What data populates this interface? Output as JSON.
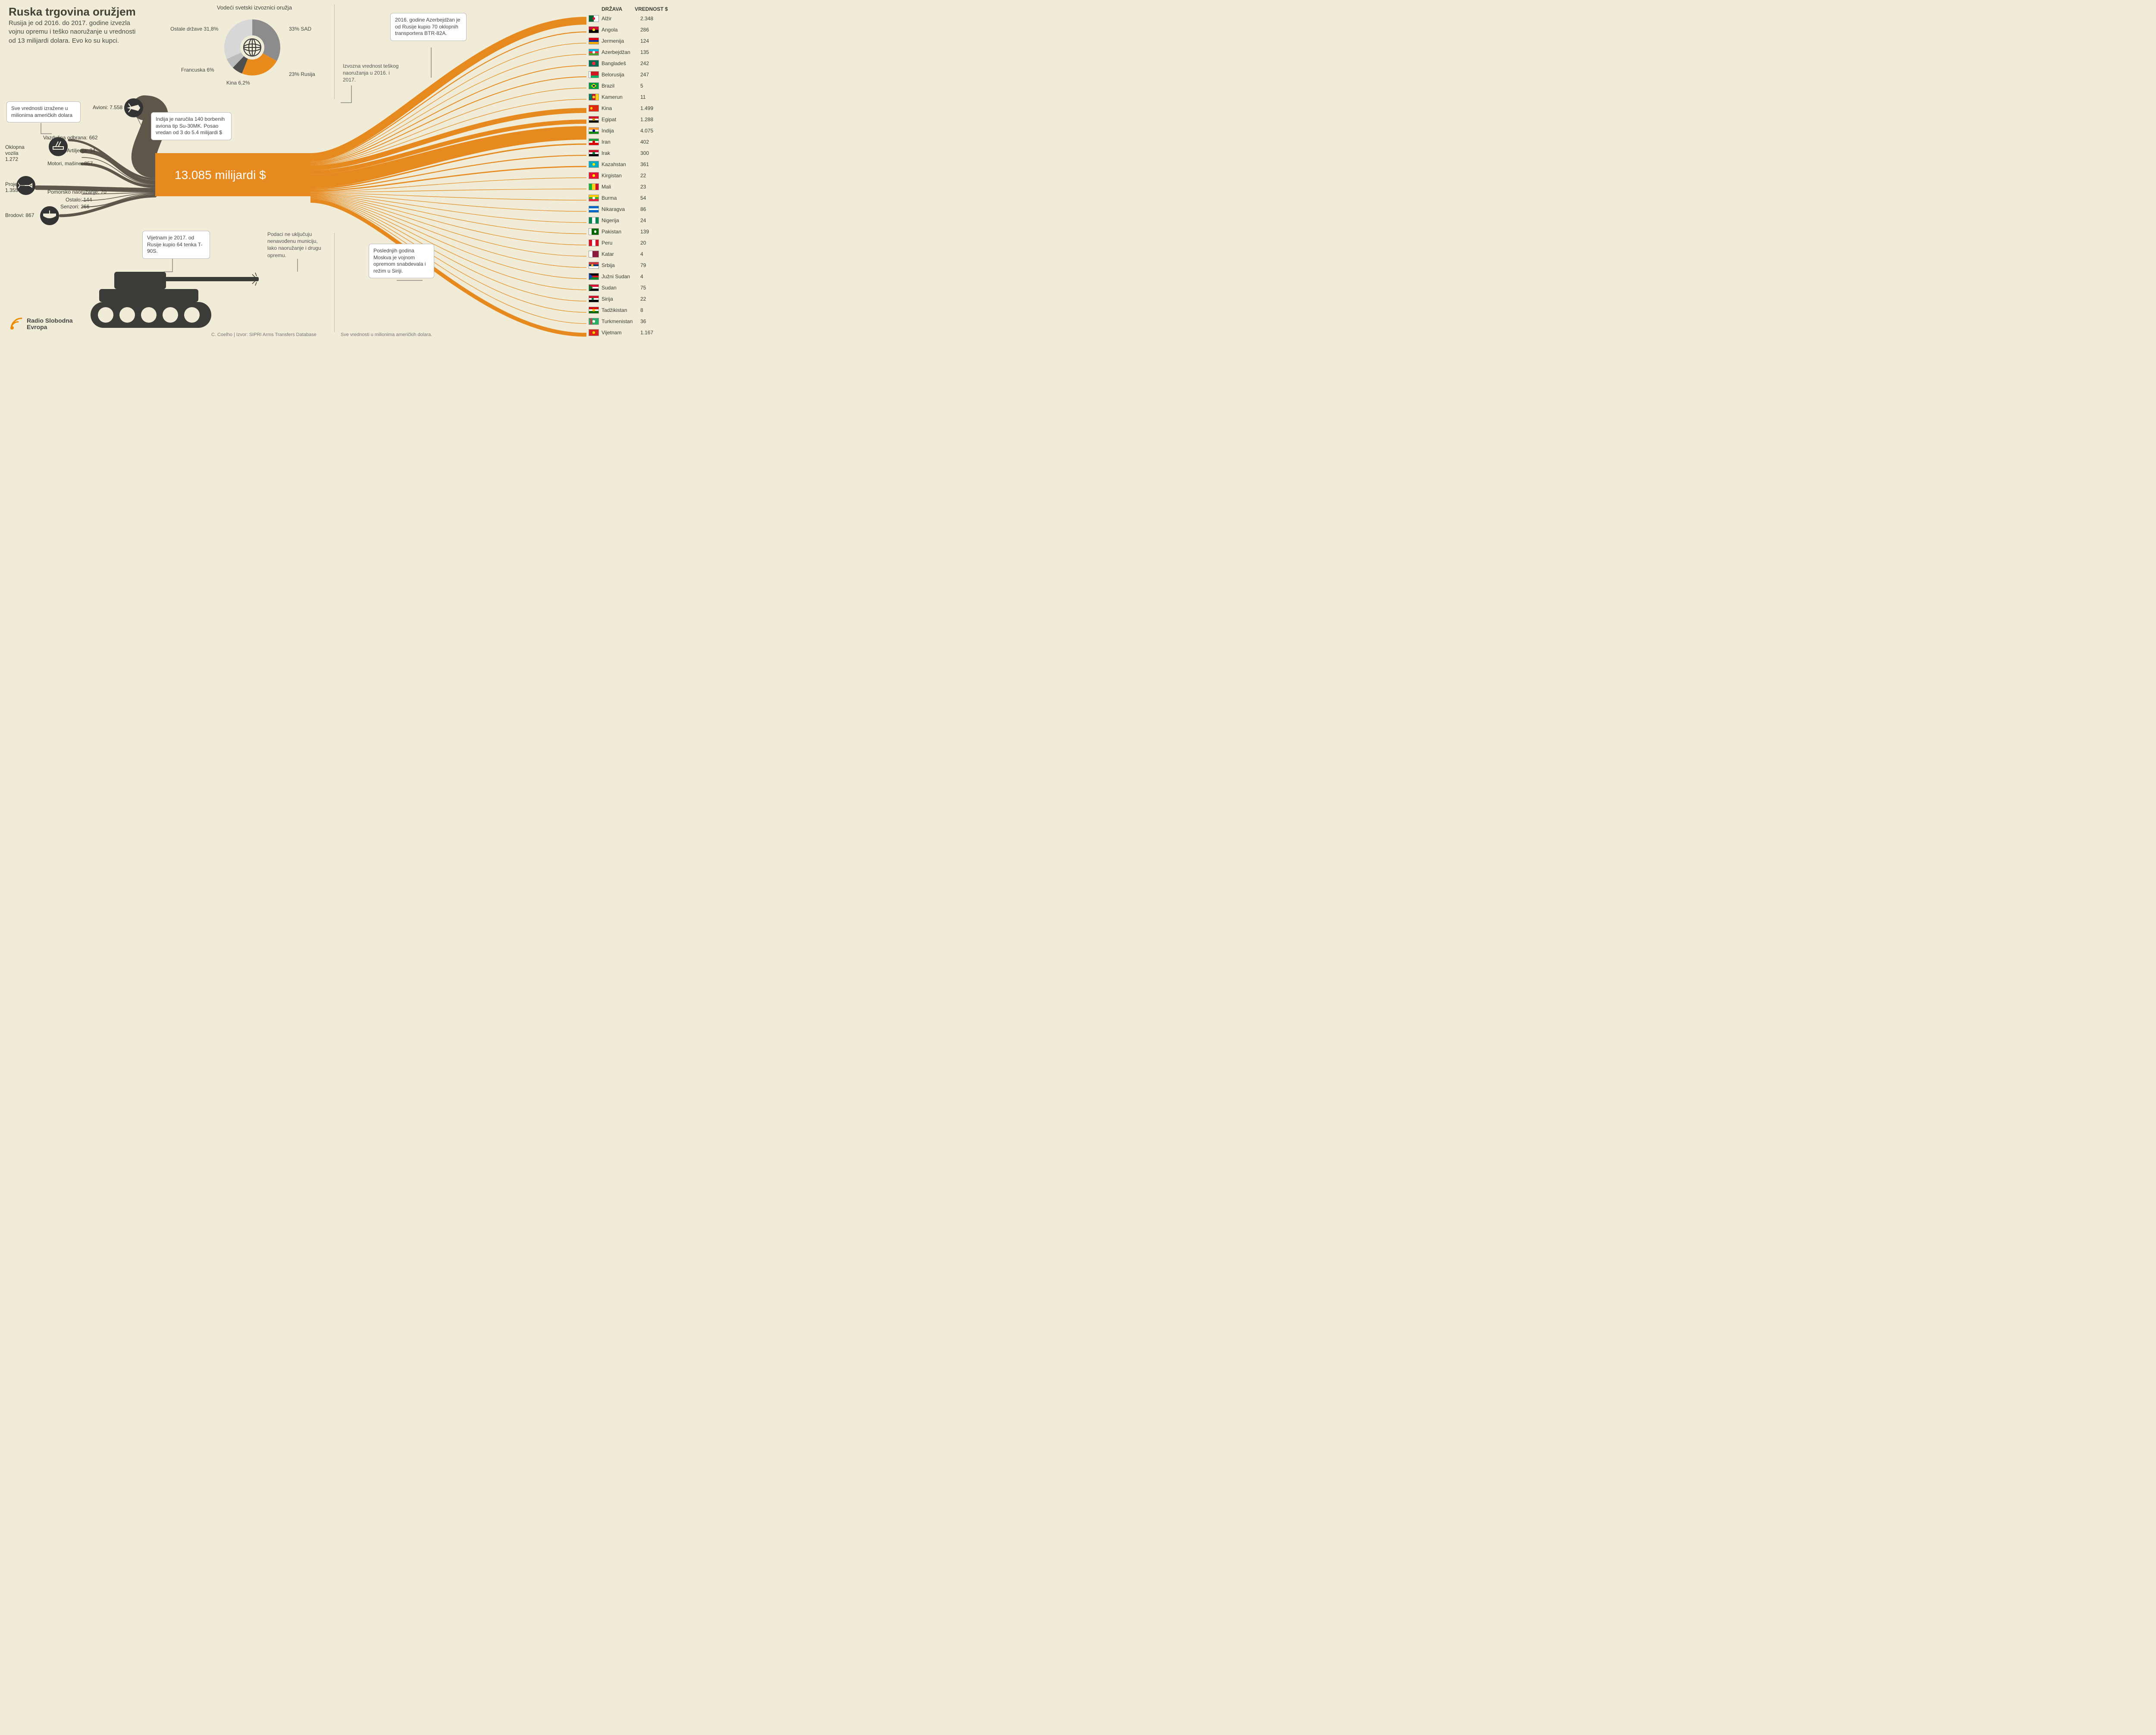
{
  "colors": {
    "bg": "#f0ecd7",
    "flow_main": "#e68a1f",
    "flow_source": "#5e564a",
    "text": "#3a3a38",
    "pie": {
      "usa": "#8c8c8c",
      "russia": "#e98b1c",
      "china": "#4f4f4f",
      "france": "#bcbcbc",
      "other": "#d7d7d7"
    },
    "callout_bg": "#ffffff",
    "callout_border": "#bbbbbb",
    "tank": "#3b3b38"
  },
  "title": "Ruska trgovina oružjem",
  "subtitle": "Rusija je od 2016. do 2017. godine izvezla vojnu opremu i teško naoružanje u vrednosti od 13 milijardi dolara. Evo ko su kupci.",
  "pie": {
    "title": "Vodeći svetski izvoznici oružja",
    "slices": [
      {
        "label": "33% SAD",
        "value": 33,
        "color": "#8c8c8c"
      },
      {
        "label": "23% Rusija",
        "value": 23,
        "color": "#e98b1c"
      },
      {
        "label": "Kina 6,2%",
        "value": 6.2,
        "color": "#4f4f4f"
      },
      {
        "label": "Francuska 6%",
        "value": 6,
        "color": "#bcbcbc"
      },
      {
        "label": "Ostale države 31,8%",
        "value": 31.8,
        "color": "#d7d7d7"
      }
    ]
  },
  "value_note": {
    "title": "Sve vrednosti izražene u milionima američkih dolara",
    "label": ""
  },
  "sources": [
    {
      "label": "Avioni: 7.558",
      "value": 7558,
      "icon": "jet"
    },
    {
      "label": "Vazdušna odbrana: 662",
      "value": 662,
      "icon": "aa"
    },
    {
      "label": "Oklopna vozila 1.272",
      "value": 1272,
      "label_only": true
    },
    {
      "label": "Artiljerija: 34",
      "value": 34,
      "label_only": true
    },
    {
      "label": "Motori, mašine: 857",
      "value": 857,
      "label_only": true
    },
    {
      "label": "Projektili 1.355",
      "value": 1355,
      "icon": "missile"
    },
    {
      "label": "Pomorsko naoružanje: 70",
      "value": 70,
      "label_only": true
    },
    {
      "label": "Ostalo: 144",
      "value": 144,
      "label_only": true
    },
    {
      "label": "Senzori: 266",
      "value": 266,
      "label_only": true
    },
    {
      "label": "Brodovi: 867",
      "value": 867,
      "icon": "ship"
    }
  ],
  "central_total": "13.085 milijardi $",
  "callouts": {
    "india": "Indija je naručila 140 borbenih aviona tip Su-30MK. Posao vredan od 3 do 5.4 milijardi $",
    "azer": "2016. godine Azerbejdžan je od Rusije kupio 70 oklopnih transportera BTR-82A.",
    "vietnam": "Vijetnam je 2017. od Rusije kupio 64 tenka T-90S.",
    "syria": "Poslednjih godina Moskva je vojnom opremom snabdevala i režim u Siriji."
  },
  "notes": {
    "export": "Izvozna vrednost teškog naoružanja u 2016. i 2017.",
    "exclude": "Podaci ne uključuju nenavođenu municiju, lako naoružanje i drugu opremu."
  },
  "destinations_header": {
    "country": "DRŽAVA",
    "value": "VREDNOST $"
  },
  "destinations": [
    {
      "name": "Alžir",
      "value": "2.348",
      "v": 2348,
      "flag": {
        "bg": "#fff",
        "stripes": [
          [
            "v",
            "#006233",
            0,
            50
          ]
        ],
        "emblem": "star",
        "ec": "#d21034"
      }
    },
    {
      "name": "Angola",
      "value": "286",
      "v": 286,
      "flag": {
        "bg": "#cc092f",
        "stripes": [
          [
            "h",
            "#000",
            50,
            100
          ]
        ],
        "emblem": "dot",
        "ec": "#f7d618"
      }
    },
    {
      "name": "Jermenija",
      "value": "124",
      "v": 124,
      "flag": {
        "stripes": [
          [
            "h",
            "#d90012",
            0,
            33
          ],
          [
            "h",
            "#0033a0",
            33,
            66
          ],
          [
            "h",
            "#f2a800",
            66,
            100
          ]
        ]
      }
    },
    {
      "name": "Azerbejdžan",
      "value": "135",
      "v": 135,
      "flag": {
        "stripes": [
          [
            "h",
            "#00b5e2",
            0,
            33
          ],
          [
            "h",
            "#ef3340",
            33,
            66
          ],
          [
            "h",
            "#509e2f",
            66,
            100
          ]
        ],
        "emblem": "dot",
        "ec": "#fff"
      }
    },
    {
      "name": "Bangladeš",
      "value": "242",
      "v": 242,
      "flag": {
        "bg": "#006a4e",
        "emblem": "bigdot",
        "ec": "#f42a41"
      }
    },
    {
      "name": "Belorusija",
      "value": "247",
      "v": 247,
      "flag": {
        "bg": "#ce1720",
        "stripes": [
          [
            "h",
            "#00af66",
            66,
            100
          ],
          [
            "v",
            "#fff",
            0,
            18
          ]
        ]
      }
    },
    {
      "name": "Brazil",
      "value": "5",
      "v": 5,
      "flag": {
        "bg": "#009b3a",
        "emblem": "diamond",
        "ec": "#fedf00",
        "ec2": "#002776"
      }
    },
    {
      "name": "Kamerun",
      "value": "11",
      "v": 11,
      "flag": {
        "stripes": [
          [
            "v",
            "#007a5e",
            0,
            33
          ],
          [
            "v",
            "#ce1126",
            33,
            66
          ],
          [
            "v",
            "#fcd116",
            66,
            100
          ]
        ],
        "emblem": "dot",
        "ec": "#fcd116"
      }
    },
    {
      "name": "Kina",
      "value": "1.499",
      "v": 1499,
      "flag": {
        "bg": "#de2910",
        "emblem": "dot",
        "ec": "#ffde00",
        "ex": 25
      }
    },
    {
      "name": "Egipat",
      "value": "1.288",
      "v": 1288,
      "flag": {
        "stripes": [
          [
            "h",
            "#ce1126",
            0,
            33
          ],
          [
            "h",
            "#fff",
            33,
            66
          ],
          [
            "h",
            "#000",
            66,
            100
          ]
        ],
        "emblem": "dot",
        "ec": "#c09300"
      }
    },
    {
      "name": "Indija",
      "value": "4.075",
      "v": 4075,
      "flag": {
        "stripes": [
          [
            "h",
            "#ff9933",
            0,
            33
          ],
          [
            "h",
            "#fff",
            33,
            66
          ],
          [
            "h",
            "#138808",
            66,
            100
          ]
        ],
        "emblem": "dot",
        "ec": "#000080"
      }
    },
    {
      "name": "Iran",
      "value": "402",
      "v": 402,
      "flag": {
        "stripes": [
          [
            "h",
            "#239f40",
            0,
            33
          ],
          [
            "h",
            "#fff",
            33,
            66
          ],
          [
            "h",
            "#da0000",
            66,
            100
          ]
        ],
        "emblem": "dot",
        "ec": "#da0000"
      }
    },
    {
      "name": "Irak",
      "value": "300",
      "v": 300,
      "flag": {
        "stripes": [
          [
            "h",
            "#ce1126",
            0,
            33
          ],
          [
            "h",
            "#fff",
            33,
            66
          ],
          [
            "h",
            "#000",
            66,
            100
          ]
        ],
        "emblem": "dot",
        "ec": "#007a3d"
      }
    },
    {
      "name": "Kazahstan",
      "value": "361",
      "v": 361,
      "flag": {
        "bg": "#00abc2",
        "emblem": "dot",
        "ec": "#ffe400"
      }
    },
    {
      "name": "Kirgistan",
      "value": "22",
      "v": 22,
      "flag": {
        "bg": "#e8112d",
        "emblem": "dot",
        "ec": "#ffef00"
      }
    },
    {
      "name": "Mali",
      "value": "23",
      "v": 23,
      "flag": {
        "stripes": [
          [
            "v",
            "#14b53a",
            0,
            33
          ],
          [
            "v",
            "#fcd116",
            33,
            66
          ],
          [
            "v",
            "#ce1126",
            66,
            100
          ]
        ]
      }
    },
    {
      "name": "Burma",
      "value": "54",
      "v": 54,
      "flag": {
        "stripes": [
          [
            "h",
            "#fecb00",
            0,
            33
          ],
          [
            "h",
            "#34b233",
            33,
            66
          ],
          [
            "h",
            "#ea2839",
            66,
            100
          ]
        ],
        "emblem": "dot",
        "ec": "#fff"
      }
    },
    {
      "name": "Nikaragva",
      "value": "86",
      "v": 86,
      "flag": {
        "stripes": [
          [
            "h",
            "#0067c6",
            0,
            33
          ],
          [
            "h",
            "#fff",
            33,
            66
          ],
          [
            "h",
            "#0067c6",
            66,
            100
          ]
        ]
      }
    },
    {
      "name": "Nigerija",
      "value": "24",
      "v": 24,
      "flag": {
        "stripes": [
          [
            "v",
            "#008751",
            0,
            33
          ],
          [
            "v",
            "#fff",
            33,
            66
          ],
          [
            "v",
            "#008751",
            66,
            100
          ]
        ]
      }
    },
    {
      "name": "Pakistan",
      "value": "139",
      "v": 139,
      "flag": {
        "bg": "#006600",
        "stripes": [
          [
            "v",
            "#fff",
            0,
            28
          ]
        ],
        "emblem": "dot",
        "ec": "#fff",
        "ex": 65
      }
    },
    {
      "name": "Peru",
      "value": "20",
      "v": 20,
      "flag": {
        "stripes": [
          [
            "v",
            "#d91023",
            0,
            33
          ],
          [
            "v",
            "#fff",
            33,
            66
          ],
          [
            "v",
            "#d91023",
            66,
            100
          ]
        ]
      }
    },
    {
      "name": "Katar",
      "value": "4",
      "v": 4,
      "flag": {
        "bg": "#8d1b3d",
        "stripes": [
          [
            "v",
            "#fff",
            0,
            35
          ]
        ]
      }
    },
    {
      "name": "Srbija",
      "value": "79",
      "v": 79,
      "flag": {
        "stripes": [
          [
            "h",
            "#c6363c",
            0,
            33
          ],
          [
            "h",
            "#0c4076",
            33,
            66
          ],
          [
            "h",
            "#fff",
            66,
            100
          ]
        ],
        "emblem": "dot",
        "ec": "#edb92e",
        "ex": 35
      }
    },
    {
      "name": "Južni Sudan",
      "value": "4",
      "v": 4,
      "flag": {
        "stripes": [
          [
            "h",
            "#000",
            0,
            33
          ],
          [
            "h",
            "#da121a",
            33,
            66
          ],
          [
            "h",
            "#078930",
            66,
            100
          ]
        ],
        "emblem": "tri",
        "ec": "#0f47af"
      }
    },
    {
      "name": "Sudan",
      "value": "75",
      "v": 75,
      "flag": {
        "stripes": [
          [
            "h",
            "#d21034",
            0,
            33
          ],
          [
            "h",
            "#fff",
            33,
            66
          ],
          [
            "h",
            "#000",
            66,
            100
          ]
        ],
        "emblem": "tri",
        "ec": "#007229"
      }
    },
    {
      "name": "Sirija",
      "value": "22",
      "v": 22,
      "flag": {
        "stripes": [
          [
            "h",
            "#ce1126",
            0,
            33
          ],
          [
            "h",
            "#fff",
            33,
            66
          ],
          [
            "h",
            "#000",
            66,
            100
          ]
        ],
        "emblem": "dot",
        "ec": "#007a3d",
        "ex": 38
      },
      "emblem2": {
        "ec": "#007a3d",
        "ex": 62
      }
    },
    {
      "name": "Tadžikistan",
      "value": "8",
      "v": 8,
      "flag": {
        "stripes": [
          [
            "h",
            "#cc0000",
            0,
            33
          ],
          [
            "h",
            "#fff",
            33,
            66
          ],
          [
            "h",
            "#006600",
            66,
            100
          ]
        ],
        "emblem": "dot",
        "ec": "#f8c300"
      }
    },
    {
      "name": "Turkmenistan",
      "value": "36",
      "v": 36,
      "flag": {
        "bg": "#28ae66",
        "stripes": [
          [
            "v",
            "#ca3745",
            15,
            30
          ]
        ],
        "emblem": "dot",
        "ec": "#fff",
        "ex": 50
      }
    },
    {
      "name": "Vijetnam",
      "value": "1.167",
      "v": 1167,
      "flag": {
        "bg": "#da251d",
        "emblem": "dot",
        "ec": "#ffcd00"
      }
    }
  ],
  "source_credit": "C. Coelho | Izvor: SIPRI Arms Transfers Database",
  "footer_values_note": "Sve vrednosti u milionima američkih dolara.",
  "logo_text": "Radio Slobodna Evropa"
}
